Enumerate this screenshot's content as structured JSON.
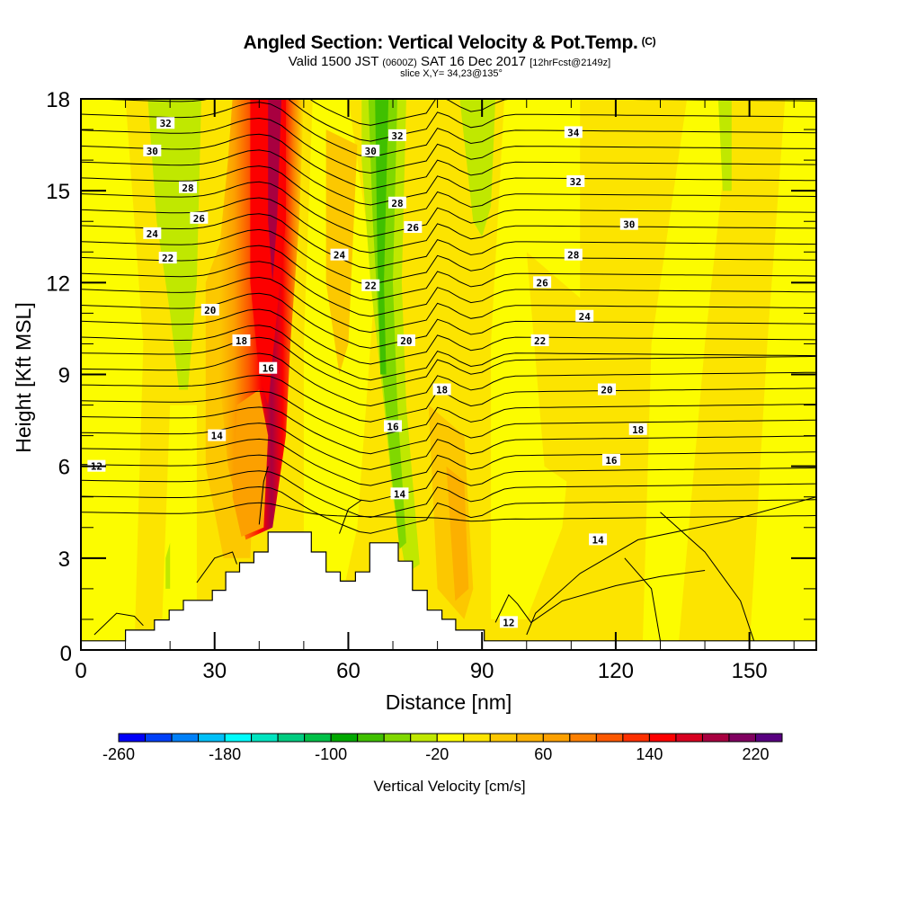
{
  "header": {
    "title": "Angled Section: Vertical Velocity & Pot.Temp.",
    "copyright": "(C)",
    "valid_prefix": "Valid 1500 JST",
    "valid_utc": "(0600Z)",
    "valid_date": "SAT 16 Dec 2017",
    "forecast": "[12hrFcst@2149z]",
    "slice": "slice X,Y= 34,23@135°"
  },
  "chart_data": {
    "type": "heatmap",
    "title": "Angled Section: Vertical Velocity & Pot.Temp.",
    "xlabel": "Distance [nm]",
    "ylabel": "Height [Kft MSL]",
    "xlim": [
      0,
      165
    ],
    "ylim": [
      0,
      18
    ],
    "xticks": [
      "0",
      "30",
      "60",
      "90",
      "120",
      "150"
    ],
    "yticks": [
      "0",
      "3",
      "6",
      "9",
      "12",
      "15",
      "18"
    ],
    "xtick_values": [
      0,
      30,
      60,
      90,
      120,
      150
    ],
    "ytick_values": [
      0,
      3,
      6,
      9,
      12,
      15,
      18
    ],
    "grid": false,
    "fill_field": "Vertical Velocity [cm/s]",
    "contour_field": "Potential Temperature [C]",
    "velocity_regions": [
      {
        "name": "main-updraft",
        "center_nm": 45,
        "min_height_kft": 4,
        "max_height_kft": 18,
        "peak_cm_s": 220
      },
      {
        "name": "downdraft-west",
        "center_nm": 22,
        "min_height_kft": 8.5,
        "max_height_kft": 18,
        "peak_cm_s": -40
      },
      {
        "name": "downdraft-central",
        "center_nm": 70,
        "min_height_kft": 3,
        "max_height_kft": 18,
        "peak_cm_s": -100
      },
      {
        "name": "downdraft-east",
        "center_nm": 90,
        "min_height_kft": 13.5,
        "max_height_kft": 18,
        "peak_cm_s": -40
      },
      {
        "name": "updraft-east",
        "center_nm": 85,
        "min_height_kft": 1,
        "max_height_kft": 8,
        "peak_cm_s": 60
      }
    ],
    "contour_labels": [
      {
        "text": "32",
        "x_nm": 19,
        "y_kft": 17.2
      },
      {
        "text": "30",
        "x_nm": 16,
        "y_kft": 16.3
      },
      {
        "text": "28",
        "x_nm": 24,
        "y_kft": 15.1
      },
      {
        "text": "26",
        "x_nm": 26.5,
        "y_kft": 14.1
      },
      {
        "text": "24",
        "x_nm": 16,
        "y_kft": 13.6
      },
      {
        "text": "22",
        "x_nm": 19.5,
        "y_kft": 12.8
      },
      {
        "text": "20",
        "x_nm": 29,
        "y_kft": 11.1
      },
      {
        "text": "18",
        "x_nm": 36,
        "y_kft": 10.1
      },
      {
        "text": "16",
        "x_nm": 42,
        "y_kft": 9.2
      },
      {
        "text": "14",
        "x_nm": 30.5,
        "y_kft": 7.0
      },
      {
        "text": "12",
        "x_nm": 3.5,
        "y_kft": 6.0
      },
      {
        "text": "24",
        "x_nm": 58,
        "y_kft": 12.9
      },
      {
        "text": "22",
        "x_nm": 65,
        "y_kft": 11.9
      },
      {
        "text": "30",
        "x_nm": 65,
        "y_kft": 16.3
      },
      {
        "text": "32",
        "x_nm": 71,
        "y_kft": 16.8
      },
      {
        "text": "28",
        "x_nm": 71,
        "y_kft": 14.6
      },
      {
        "text": "26",
        "x_nm": 74.5,
        "y_kft": 13.8
      },
      {
        "text": "20",
        "x_nm": 73,
        "y_kft": 10.1
      },
      {
        "text": "18",
        "x_nm": 81,
        "y_kft": 8.5
      },
      {
        "text": "16",
        "x_nm": 70,
        "y_kft": 7.3
      },
      {
        "text": "14",
        "x_nm": 71.5,
        "y_kft": 5.1
      },
      {
        "text": "34",
        "x_nm": 110.5,
        "y_kft": 16.9
      },
      {
        "text": "32",
        "x_nm": 111,
        "y_kft": 15.3
      },
      {
        "text": "30",
        "x_nm": 123,
        "y_kft": 13.9
      },
      {
        "text": "28",
        "x_nm": 110.5,
        "y_kft": 12.9
      },
      {
        "text": "26",
        "x_nm": 103.5,
        "y_kft": 12.0
      },
      {
        "text": "24",
        "x_nm": 113,
        "y_kft": 10.9
      },
      {
        "text": "22",
        "x_nm": 103,
        "y_kft": 10.1
      },
      {
        "text": "20",
        "x_nm": 118,
        "y_kft": 8.5
      },
      {
        "text": "18",
        "x_nm": 125,
        "y_kft": 7.2
      },
      {
        "text": "16",
        "x_nm": 119,
        "y_kft": 6.2
      },
      {
        "text": "14",
        "x_nm": 116,
        "y_kft": 3.6
      },
      {
        "text": "12",
        "x_nm": 96,
        "y_kft": 0.9
      }
    ],
    "terrain_kft": [
      [
        0,
        0.3
      ],
      [
        10,
        0.65
      ],
      [
        16.5,
        0.98
      ],
      [
        19.8,
        1.3
      ],
      [
        23,
        1.62
      ],
      [
        29.5,
        1.95
      ],
      [
        32.5,
        2.55
      ],
      [
        35.6,
        2.85
      ],
      [
        38.8,
        3.2
      ],
      [
        42,
        3.85
      ],
      [
        51.7,
        3.2
      ],
      [
        55,
        2.55
      ],
      [
        58.2,
        2.25
      ],
      [
        61.6,
        2.55
      ],
      [
        64.8,
        3.5
      ],
      [
        71.2,
        2.9
      ],
      [
        74.4,
        1.95
      ],
      [
        77.7,
        1.3
      ],
      [
        81,
        1.0
      ],
      [
        84.1,
        0.65
      ],
      [
        90.5,
        0.3
      ],
      [
        165,
        0.3
      ]
    ]
  },
  "colorbar": {
    "title": "Vertical Velocity [cm/s]",
    "tick_labels": [
      "-260",
      "-180",
      "-100",
      "-20",
      "60",
      "140",
      "220"
    ],
    "tick_values": [
      -260,
      -180,
      -100,
      -20,
      60,
      140,
      220
    ],
    "min": -260,
    "max": 240,
    "step": 20,
    "colors": [
      "#0000f8",
      "#0040f8",
      "#0080f8",
      "#00c0f8",
      "#00fcfc",
      "#00e4c0",
      "#00cc80",
      "#00c048",
      "#00a800",
      "#40c000",
      "#80d800",
      "#c0e800",
      "#fcfc00",
      "#fce400",
      "#fcc800",
      "#fcb000",
      "#fca000",
      "#fc8000",
      "#fc5800",
      "#fc3000",
      "#fc0000",
      "#d80020",
      "#a80040",
      "#800060",
      "#580080"
    ]
  }
}
